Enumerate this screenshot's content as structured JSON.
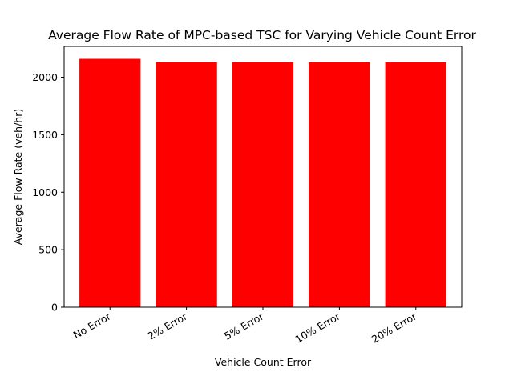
{
  "chart_data": {
    "type": "bar",
    "title": "Average Flow Rate of MPC-based TSC for Varying Vehicle Count Error",
    "xlabel": "Vehicle Count Error",
    "ylabel": "Average Flow Rate (veh/hr)",
    "categories": [
      "No Error",
      "2% Error",
      "5% Error",
      "10% Error",
      "20% Error"
    ],
    "values": [
      2160,
      2130,
      2130,
      2130,
      2130
    ],
    "ylim": [
      0,
      2268
    ],
    "yticks": [
      0,
      500,
      1000,
      1500,
      2000
    ],
    "bar_color": "#ff0000",
    "grid": false,
    "legend": false
  }
}
